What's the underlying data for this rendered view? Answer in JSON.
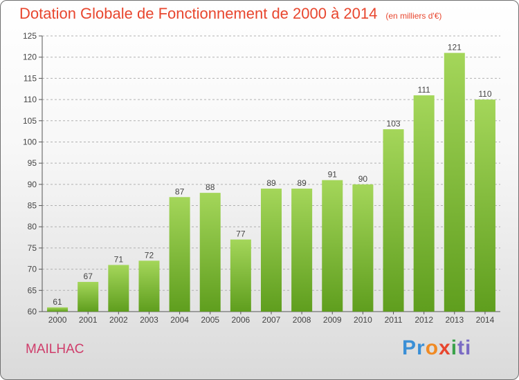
{
  "title": "Dotation Globale de Fonctionnement de 2000 à 2014",
  "unit_label": "(en milliers d'€)",
  "commune": "MAILHAC",
  "logo": {
    "text": "Proxiti",
    "parts": [
      "Pr",
      "o",
      "x",
      "i",
      "ti"
    ]
  },
  "colors": {
    "title": "#e8462e",
    "commune": "#cf3c6a",
    "bar_top": "#a4d65a",
    "bar_bottom": "#5f9e1e",
    "grid": "#b0b0b0",
    "axis": "#555555"
  },
  "chart_data": {
    "type": "bar",
    "title": "Dotation Globale de Fonctionnement de 2000 à 2014",
    "subtitle": "(en milliers d'€)",
    "categories": [
      "2000",
      "2001",
      "2002",
      "2003",
      "2004",
      "2005",
      "2006",
      "2007",
      "2008",
      "2009",
      "2010",
      "2011",
      "2012",
      "2013",
      "2014"
    ],
    "values": [
      61,
      67,
      71,
      72,
      87,
      88,
      77,
      89,
      89,
      91,
      90,
      103,
      111,
      121,
      110
    ],
    "xlabel": "",
    "ylabel": "",
    "ylim": [
      60,
      125
    ],
    "yticks": [
      60,
      65,
      70,
      75,
      80,
      85,
      90,
      95,
      100,
      105,
      110,
      115,
      120,
      125
    ],
    "grid": "horizontal dashed",
    "legend": "none"
  }
}
